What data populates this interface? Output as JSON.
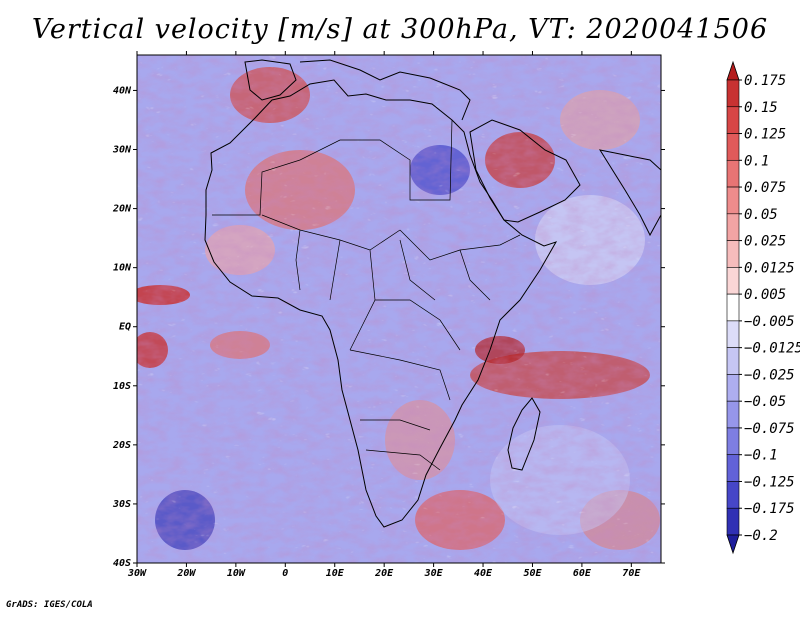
{
  "title": "Vertical velocity [m/s] at 300hPa, VT: 2020041506",
  "footer": "GrADS: IGES/COLA",
  "map": {
    "lon_range": [
      -30,
      76
    ],
    "lat_range": [
      -40,
      46
    ],
    "lat_labels": [
      "40N",
      "30N",
      "20N",
      "10N",
      "EQ",
      "10S",
      "20S",
      "30S",
      "40S"
    ],
    "lat_values": [
      40,
      30,
      20,
      10,
      0,
      -10,
      -20,
      -30,
      -40
    ],
    "lon_labels": [
      "30W",
      "20W",
      "10W",
      "0",
      "10E",
      "20E",
      "30E",
      "40E",
      "50E",
      "60E",
      "70E"
    ],
    "lon_values": [
      -30,
      -20,
      -10,
      0,
      10,
      20,
      30,
      40,
      50,
      60,
      70
    ]
  },
  "colorbar": {
    "labels": [
      "0.175",
      "0.15",
      "0.125",
      "0.1",
      "0.075",
      "0.05",
      "0.025",
      "0.0125",
      "0.005",
      "−0.005",
      "−0.0125",
      "−0.025",
      "−0.05",
      "−0.075",
      "−0.1",
      "−0.125",
      "−0.175",
      "−0.2"
    ],
    "colors": [
      "#b41c1c",
      "#c83232",
      "#d74646",
      "#e05a5a",
      "#e87474",
      "#ee8c8c",
      "#f2a4a4",
      "#f6bcbc",
      "#fad6d6",
      "#ffffff",
      "#dcdcf8",
      "#c6c6f4",
      "#aeaef0",
      "#9696ea",
      "#7e7ee2",
      "#6262d8",
      "#4646c8",
      "#3030b4",
      "#1e1e9c"
    ]
  }
}
